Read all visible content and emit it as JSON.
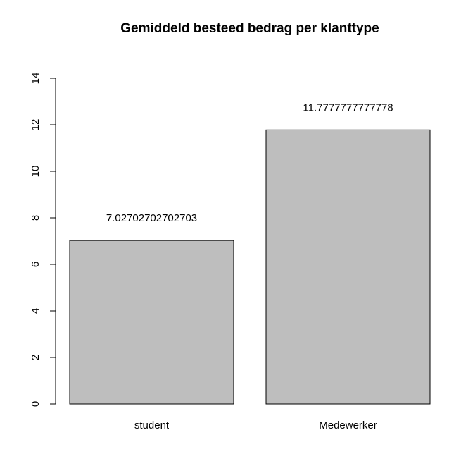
{
  "chart_data": {
    "type": "bar",
    "title": "Gemiddeld besteed bedrag per klanttype",
    "xlabel": "",
    "ylabel": "",
    "categories": [
      "student",
      "Medewerker"
    ],
    "values": [
      7.02702702702703,
      11.7777777777778
    ],
    "data_labels": [
      "7.02702702702703",
      "11.7777777777778"
    ],
    "ylim": [
      0,
      14
    ],
    "yticks": [
      0,
      2,
      4,
      6,
      8,
      10,
      12,
      14
    ],
    "bar_color": "#bebebe",
    "grid": false,
    "legend": "none"
  }
}
